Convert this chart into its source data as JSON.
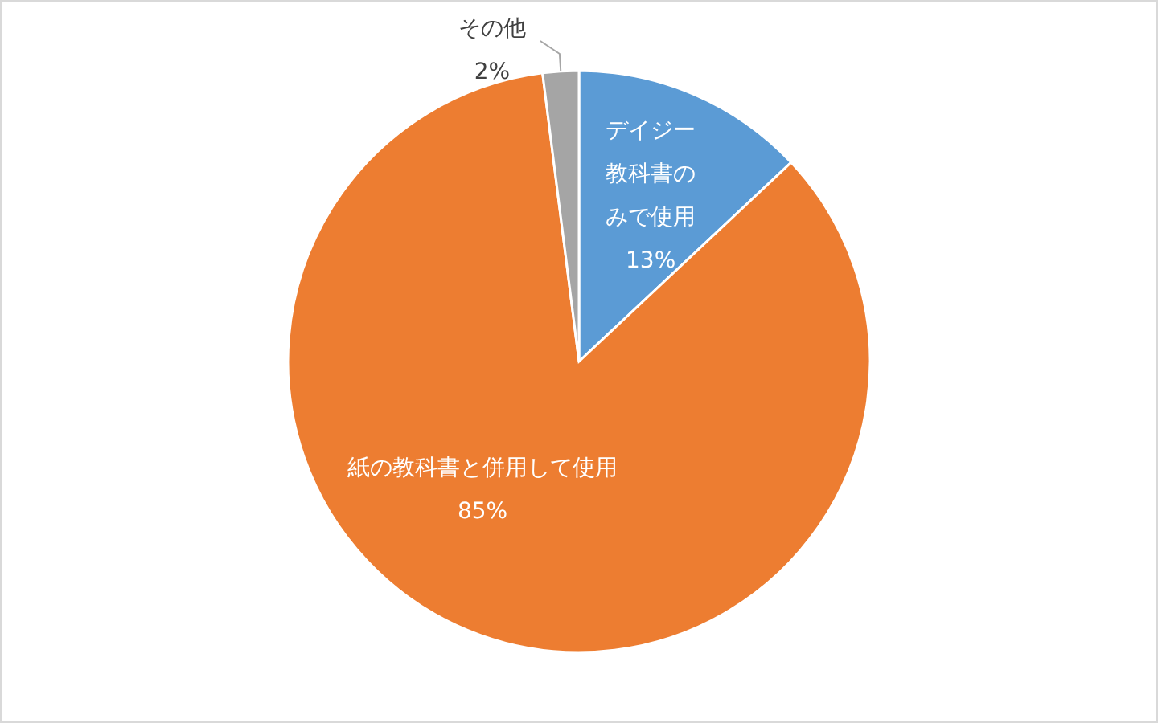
{
  "chart_data": {
    "type": "pie",
    "categories": [
      "デイジー教科書のみで使用",
      "紙の教科書と併用して使用",
      "その他"
    ],
    "values": [
      13,
      85,
      2
    ],
    "colors": [
      "#5b9bd5",
      "#ed7d31",
      "#a5a5a5"
    ],
    "value_labels": [
      "13%",
      "85%",
      "2%"
    ]
  }
}
